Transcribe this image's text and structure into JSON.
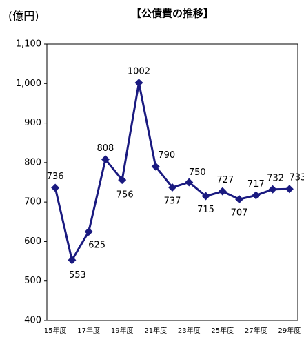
{
  "chart_data": {
    "type": "line",
    "title": "【公債費の推移】",
    "y_axis_label": "(億円)",
    "categories": [
      "15年度",
      null,
      "17年度",
      null,
      "19年度",
      null,
      "21年度",
      null,
      "23年度",
      null,
      "25年度",
      null,
      "27年度",
      null,
      "29年度"
    ],
    "series": [
      {
        "name": "公債費",
        "color": "#1a1a80",
        "values": [
          736,
          553,
          625,
          808,
          756,
          1002,
          790,
          737,
          750,
          715,
          727,
          707,
          717,
          732,
          733
        ]
      }
    ],
    "ylim": [
      400,
      1100
    ],
    "yticks": [
      400,
      500,
      600,
      700,
      800,
      900,
      {
        "value": 1000,
        "label": "1,000"
      },
      {
        "value": 1100,
        "label": "1,100"
      }
    ],
    "grid": false
  }
}
